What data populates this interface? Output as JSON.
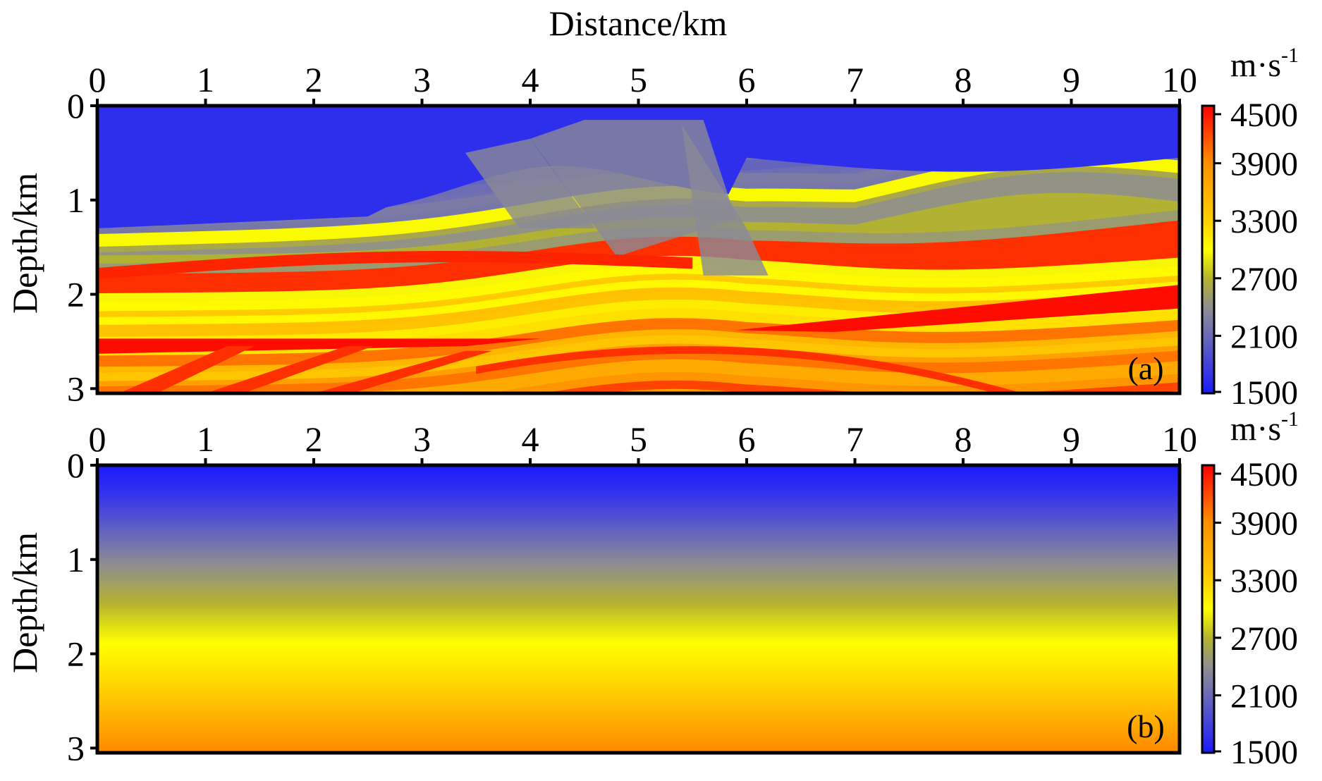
{
  "chart_data": [
    {
      "type": "heatmap",
      "panel_label": "(a)",
      "description": "Marmousi-type true velocity model: layered, folded and faulted strata",
      "xlabel": "Distance/km",
      "ylabel": "Depth/km",
      "xlim": [
        0,
        10
      ],
      "ylim": [
        0,
        3
      ],
      "xticks": [
        "0",
        "1",
        "2",
        "3",
        "4",
        "5",
        "6",
        "7",
        "8",
        "9",
        "10"
      ],
      "yticks": [
        "0",
        "1",
        "2",
        "3"
      ],
      "colorbar": {
        "unit": "m·s",
        "unit_exp": "-1",
        "ticks": [
          "4500",
          "3900",
          "3300",
          "2700",
          "2100",
          "1500"
        ],
        "range": [
          1500,
          4500
        ]
      },
      "velocity_range_ms": [
        1500,
        4500
      ],
      "features": [
        {
          "name": "water/shallow low-velocity layer",
          "depth_km": [
            0,
            1.3
          ],
          "velocity_ms": 1600
        },
        {
          "name": "high-velocity layer (left)",
          "depth_km": 1.75,
          "velocity_ms": 4300
        },
        {
          "name": "anticline crest",
          "x_km": 5.3,
          "depth_km": 2.6,
          "velocity_ms": 4200
        },
        {
          "name": "dipping high-velocity layer (right)",
          "x_km": [
            6.5,
            10
          ],
          "depth_km": [
            2.4,
            2.0
          ],
          "velocity_ms": 4400
        },
        {
          "name": "salt-like bed (left)",
          "x_km": [
            0,
            4.1
          ],
          "depth_km": 2.55,
          "velocity_ms": 4400
        }
      ]
    },
    {
      "type": "heatmap",
      "panel_label": "(b)",
      "description": "Smooth initial velocity model: velocity increases linearly with depth",
      "xlabel": "",
      "ylabel": "Depth/km",
      "xlim": [
        0,
        10
      ],
      "ylim": [
        0,
        3
      ],
      "xticks": [
        "0",
        "1",
        "2",
        "3",
        "4",
        "5",
        "6",
        "7",
        "8",
        "9",
        "10"
      ],
      "yticks": [
        "0",
        "1",
        "2",
        "3"
      ],
      "colorbar": {
        "unit": "m·s",
        "unit_exp": "-1",
        "ticks": [
          "4500",
          "3900",
          "3300",
          "2700",
          "2100",
          "1500"
        ],
        "range": [
          1500,
          4500
        ]
      },
      "velocity_profile": {
        "depth_km": [
          0,
          3.05
        ],
        "velocity_ms": [
          1500,
          3900
        ]
      }
    }
  ],
  "colormap": {
    "stops": [
      {
        "v": 1500,
        "color": "#1a1aff"
      },
      {
        "v": 2100,
        "color": "#6a6ab8"
      },
      {
        "v": 2400,
        "color": "#8f8f8f"
      },
      {
        "v": 2700,
        "color": "#b3b32f"
      },
      {
        "v": 3000,
        "color": "#ffff00"
      },
      {
        "v": 3300,
        "color": "#ffd000"
      },
      {
        "v": 3900,
        "color": "#ff9000"
      },
      {
        "v": 4500,
        "color": "#ff0000"
      }
    ]
  }
}
